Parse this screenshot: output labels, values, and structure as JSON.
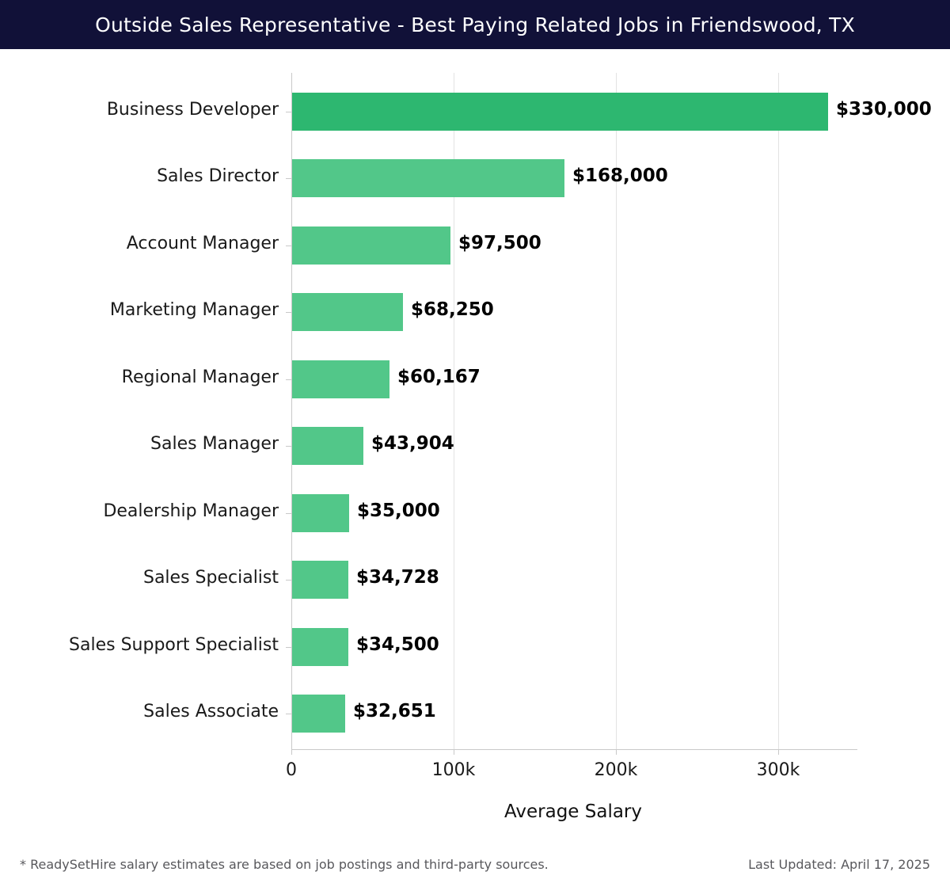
{
  "header": {
    "title": "Outside Sales Representative - Best Paying Related Jobs in Friendswood, TX"
  },
  "chart_data": {
    "type": "bar",
    "orientation": "horizontal",
    "title": "Outside Sales Representative - Best Paying Related Jobs in Friendswood, TX",
    "categories": [
      "Business Developer",
      "Sales Director",
      "Account Manager",
      "Marketing Manager",
      "Regional Manager",
      "Sales Manager",
      "Dealership Manager",
      "Sales Specialist",
      "Sales Support Specialist",
      "Sales Associate"
    ],
    "values": [
      330000,
      168000,
      97500,
      68250,
      60167,
      43904,
      35000,
      34728,
      34500,
      32651
    ],
    "value_labels": [
      "$330,000",
      "$168,000",
      "$97,500",
      "$68,250",
      "$60,167",
      "$43,904",
      "$35,000",
      "$34,728",
      "$34,500",
      "$32,651"
    ],
    "bar_colors": [
      "#2db770",
      "#52c789",
      "#52c789",
      "#52c789",
      "#52c789",
      "#52c789",
      "#52c789",
      "#52c789",
      "#52c789",
      "#52c789"
    ],
    "xlabel": "Average Salary",
    "ylabel": "",
    "x_ticks": [
      {
        "value": 0,
        "label": "0"
      },
      {
        "value": 100000,
        "label": "100k"
      },
      {
        "value": 200000,
        "label": "200k"
      },
      {
        "value": 300000,
        "label": "300k"
      }
    ],
    "xlim": [
      0,
      347000
    ],
    "grid": "vertical-gridlines-at-ticks",
    "legend": "none"
  },
  "footer": {
    "note": "* ReadySetHire salary estimates are based on job postings and third-party sources.",
    "last_updated": "Last Updated: April 17, 2025"
  },
  "colors": {
    "header_bg": "#111138",
    "header_text": "#ffffff",
    "bar_highlight": "#2db770",
    "bar_default": "#52c789",
    "gridline": "#e3e3e3",
    "axis": "#c9c9c9",
    "category_label": "#1a1a1a",
    "value_label": "#000000",
    "footer_text": "#58585c",
    "background": "#ffffff"
  }
}
